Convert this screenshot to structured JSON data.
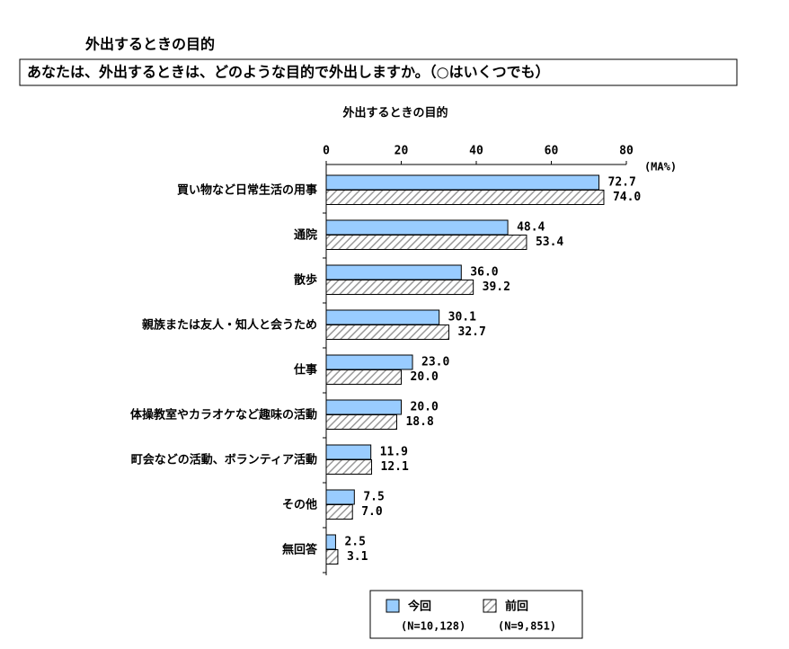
{
  "header": {
    "title": "外出するときの目的",
    "question": "あなたは、外出するときは、どのような目的で外出しますか。（○はいくつでも）"
  },
  "chart_data": {
    "type": "bar",
    "orientation": "horizontal",
    "title": "外出するときの目的",
    "x_unit_label": "(MA%)",
    "categories": [
      "買い物など日常生活の用事",
      "通院",
      "散歩",
      "親族または友人・知人と会うため",
      "仕事",
      "体操教室やカラオケなど趣味の活動",
      "町会などの活動、ボランティア活動",
      "その他",
      "無回答"
    ],
    "series": [
      {
        "name": "今回",
        "sample": "(N=10,128)",
        "color": "#99ccff",
        "pattern": "solid",
        "values": [
          72.7,
          48.4,
          36.0,
          30.1,
          23.0,
          20.0,
          11.9,
          7.5,
          2.5
        ],
        "value_labels": [
          "72.7",
          "48.4",
          "36.0",
          "30.1",
          "23.0",
          "20.0",
          "11.9",
          "7.5",
          "2.5"
        ]
      },
      {
        "name": "前回",
        "sample": "(N=9,851)",
        "color": "#999999",
        "pattern": "hatch",
        "values": [
          74.0,
          53.4,
          39.2,
          32.7,
          20.0,
          18.8,
          12.1,
          7.0,
          3.1
        ],
        "value_labels": [
          "74.0",
          "53.4",
          "39.2",
          "32.7",
          "20.0",
          "18.8",
          "12.1",
          "7.0",
          "3.1"
        ]
      }
    ],
    "xlim": [
      0,
      80
    ],
    "xticks": [
      0,
      20,
      40,
      60,
      80
    ],
    "grid": false,
    "legend_position": "bottom"
  }
}
